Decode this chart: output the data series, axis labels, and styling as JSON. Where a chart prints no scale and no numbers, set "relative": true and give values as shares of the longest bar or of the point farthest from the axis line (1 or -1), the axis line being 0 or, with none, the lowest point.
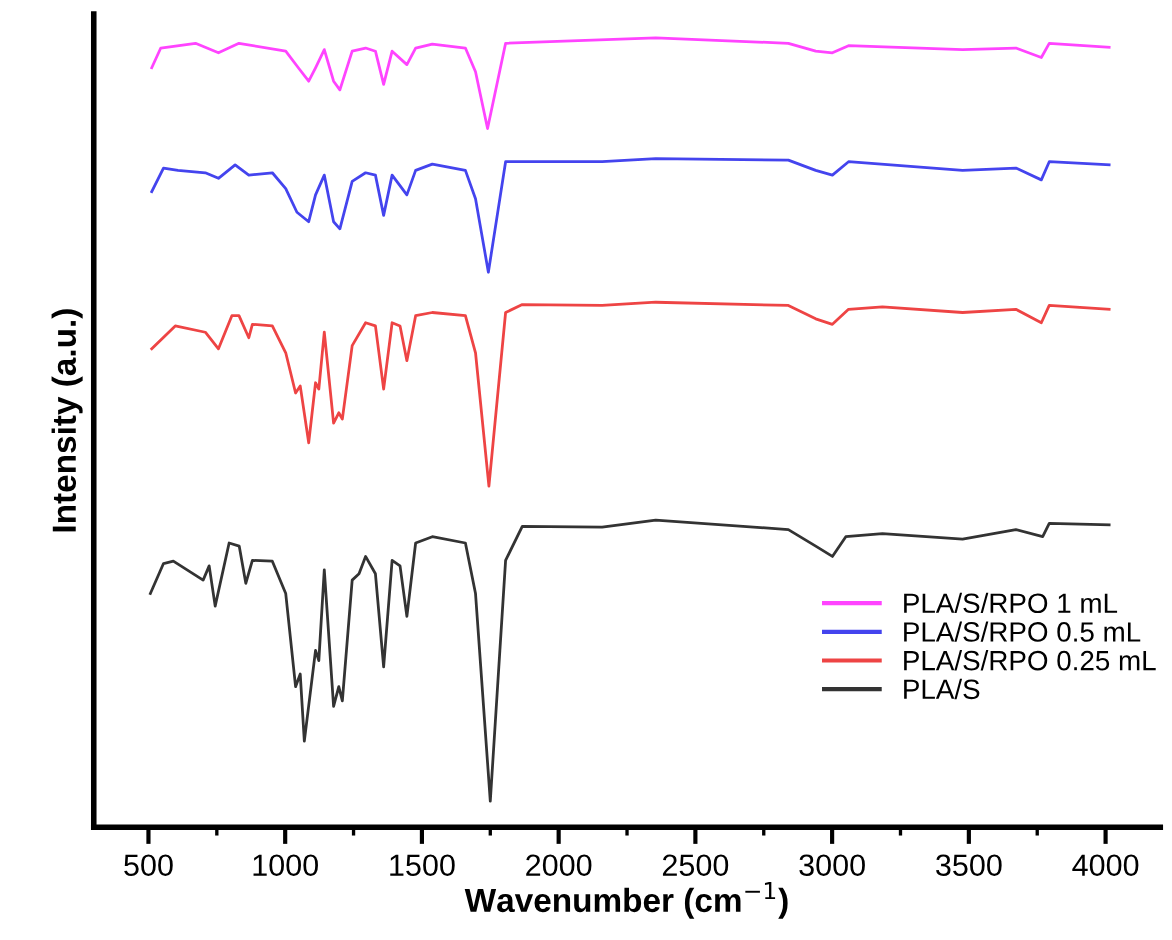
{
  "chart_data": {
    "type": "line",
    "relative": true,
    "xlabel": "Wavenumber (cm$^{−1}$)",
    "ylabel": "Intensity (a.u.)",
    "xlim": [
      300,
      4200
    ],
    "xticks": [
      500,
      {
        "value": 750,
        "label": null
      },
      1000,
      {
        "value": 1250,
        "label": null
      },
      1500,
      {
        "value": 1750,
        "label": null
      },
      2000,
      {
        "value": 2250,
        "label": null
      },
      2500,
      {
        "value": 2750,
        "label": null
      },
      3000,
      {
        "value": 3250,
        "label": null
      },
      3500,
      {
        "value": 3750,
        "label": null
      },
      4000
    ],
    "grid": false,
    "legend": "bottom right",
    "marker": "none",
    "line_style": "solid",
    "series": [
      {
        "name": "PLA/S/RPO 1 mL",
        "color": "#ff44ff",
        "x": [
          512,
          545,
          672,
          756,
          831,
          1002,
          1048,
          1086,
          1111,
          1143,
          1177,
          1200,
          1245,
          1294,
          1330,
          1360,
          1391,
          1445,
          1477,
          1538,
          1659,
          1696,
          1740,
          1806,
          2355,
          2840,
          2940,
          3001,
          3060,
          3477,
          3672,
          3765,
          3794,
          4013
        ],
        "values": [
          0.962,
          0.987,
          0.993,
          0.981,
          0.993,
          0.983,
          0.962,
          0.945,
          0.962,
          0.985,
          0.945,
          0.934,
          0.983,
          0.987,
          0.983,
          0.941,
          0.983,
          0.966,
          0.987,
          0.992,
          0.987,
          0.957,
          0.885,
          0.993,
          1.0,
          0.993,
          0.983,
          0.981,
          0.99,
          0.985,
          0.987,
          0.975,
          0.993,
          0.988
        ]
      },
      {
        "name": "PLA/S/RPO 0.5 mL",
        "color": "#4444ee",
        "x": [
          512,
          555,
          608,
          708,
          756,
          817,
          867,
          953,
          1002,
          1043,
          1086,
          1111,
          1143,
          1177,
          1200,
          1245,
          1294,
          1330,
          1360,
          1391,
          1445,
          1477,
          1538,
          1659,
          1696,
          1743,
          1806,
          2159,
          2355,
          2840,
          2940,
          3001,
          3060,
          3477,
          3672,
          3765,
          3794,
          4013
        ],
        "values": [
          0.805,
          0.835,
          0.832,
          0.829,
          0.822,
          0.839,
          0.826,
          0.829,
          0.809,
          0.779,
          0.767,
          0.801,
          0.826,
          0.767,
          0.758,
          0.818,
          0.829,
          0.826,
          0.775,
          0.826,
          0.801,
          0.832,
          0.84,
          0.832,
          0.796,
          0.703,
          0.843,
          0.843,
          0.847,
          0.845,
          0.832,
          0.826,
          0.843,
          0.832,
          0.835,
          0.82,
          0.843,
          0.839
        ]
      },
      {
        "name": "PLA/S/RPO 0.25 mL",
        "color": "#ee4444",
        "x": [
          512,
          598,
          708,
          756,
          805,
          831,
          867,
          880,
          953,
          1002,
          1038,
          1055,
          1086,
          1111,
          1123,
          1143,
          1177,
          1196,
          1209,
          1245,
          1294,
          1330,
          1360,
          1391,
          1420,
          1445,
          1477,
          1538,
          1659,
          1696,
          1745,
          1806,
          1867,
          2159,
          2355,
          2840,
          2940,
          3001,
          3060,
          3184,
          3477,
          3672,
          3765,
          3794,
          4013
        ],
        "values": [
          0.606,
          0.635,
          0.627,
          0.606,
          0.648,
          0.648,
          0.62,
          0.637,
          0.635,
          0.601,
          0.55,
          0.559,
          0.487,
          0.563,
          0.555,
          0.627,
          0.512,
          0.525,
          0.517,
          0.61,
          0.639,
          0.635,
          0.555,
          0.639,
          0.635,
          0.591,
          0.648,
          0.652,
          0.648,
          0.601,
          0.432,
          0.652,
          0.662,
          0.661,
          0.665,
          0.661,
          0.644,
          0.637,
          0.656,
          0.659,
          0.652,
          0.656,
          0.639,
          0.661,
          0.656
        ]
      },
      {
        "name": "PLA/S",
        "color": "#333333",
        "x": [
          507,
          555,
          591,
          700,
          722,
          744,
          795,
          832,
          856,
          880,
          953,
          1002,
          1038,
          1055,
          1070,
          1111,
          1123,
          1143,
          1177,
          1196,
          1209,
          1245,
          1270,
          1294,
          1330,
          1360,
          1391,
          1420,
          1445,
          1477,
          1538,
          1659,
          1696,
          1750,
          1806,
          1867,
          2159,
          2355,
          2840,
          2940,
          3001,
          3050,
          3184,
          3477,
          3672,
          3770,
          3794,
          4013
        ],
        "values": [
          0.296,
          0.334,
          0.337,
          0.313,
          0.331,
          0.28,
          0.36,
          0.356,
          0.309,
          0.338,
          0.337,
          0.296,
          0.178,
          0.194,
          0.109,
          0.224,
          0.211,
          0.326,
          0.153,
          0.178,
          0.16,
          0.313,
          0.321,
          0.343,
          0.321,
          0.203,
          0.338,
          0.331,
          0.267,
          0.36,
          0.368,
          0.36,
          0.296,
          0.033,
          0.338,
          0.381,
          0.38,
          0.389,
          0.377,
          0.356,
          0.343,
          0.368,
          0.372,
          0.365,
          0.377,
          0.368,
          0.385,
          0.383
        ]
      }
    ]
  }
}
